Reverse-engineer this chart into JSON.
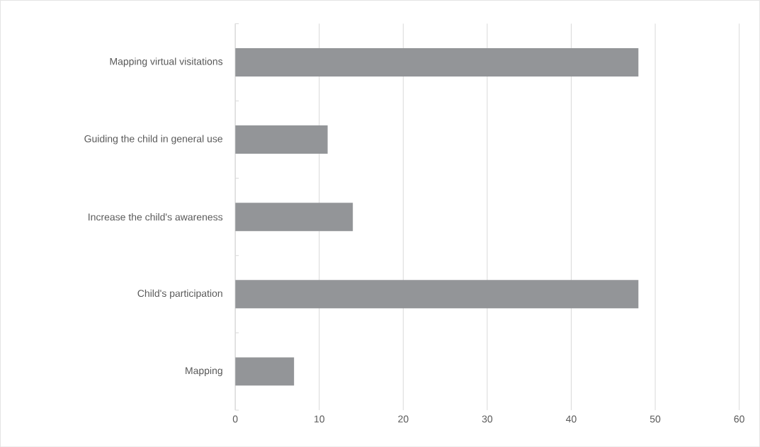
{
  "chart_data": {
    "type": "bar",
    "orientation": "horizontal",
    "categories": [
      "Mapping virtual visitations",
      "Guiding the child in general use",
      "Increase the child's awareness",
      "Child's participation",
      "Mapping"
    ],
    "values": [
      48,
      11,
      14,
      48,
      7
    ],
    "color": "#939598",
    "xlim": [
      0,
      60
    ],
    "xticks": [
      0,
      10,
      20,
      30,
      40,
      50,
      60
    ],
    "grid": "x"
  }
}
